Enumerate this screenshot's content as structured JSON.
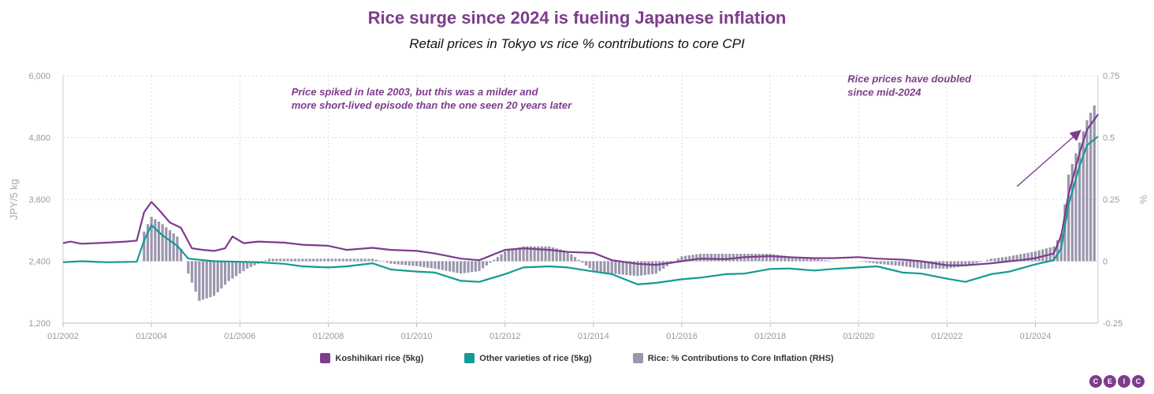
{
  "chart_data": {
    "type": "line",
    "title": "Rice surge since 2024 is fueling Japanese inflation",
    "subtitle": "Retail prices in Tokyo vs rice % contributions to core CPI",
    "ylabel": "JPY/5 kg",
    "y2label": "%",
    "ylim": [
      1200,
      6000
    ],
    "y2lim": [
      -0.25,
      0.75
    ],
    "yticks": [
      "1,200",
      "2,400",
      "3,600",
      "4,800",
      "6,000"
    ],
    "y2ticks": [
      "-0.25",
      "0",
      "0.25",
      "0.5",
      "0.75"
    ],
    "xticks": [
      "01/2002",
      "01/2004",
      "01/2006",
      "01/2008",
      "01/2010",
      "01/2012",
      "01/2014",
      "01/2016",
      "01/2018",
      "01/2020",
      "01/2022",
      "01/2024"
    ],
    "xlim": [
      "2002-01",
      "2025-06"
    ],
    "grid": true,
    "legend_position": "bottom",
    "series": [
      {
        "name": "Koshihikari rice (5kg)",
        "color": "#7d3c8c",
        "axis": "left",
        "points": [
          [
            "2002-01",
            2750
          ],
          [
            "2002-03",
            2780
          ],
          [
            "2002-06",
            2740
          ],
          [
            "2003-01",
            2760
          ],
          [
            "2003-06",
            2780
          ],
          [
            "2003-09",
            2800
          ],
          [
            "2003-11",
            3350
          ],
          [
            "2004-01",
            3550
          ],
          [
            "2004-03",
            3400
          ],
          [
            "2004-06",
            3150
          ],
          [
            "2004-09",
            3050
          ],
          [
            "2004-12",
            2650
          ],
          [
            "2005-03",
            2620
          ],
          [
            "2005-06",
            2600
          ],
          [
            "2005-09",
            2650
          ],
          [
            "2005-11",
            2880
          ],
          [
            "2006-02",
            2750
          ],
          [
            "2006-06",
            2780
          ],
          [
            "2007-01",
            2760
          ],
          [
            "2007-06",
            2720
          ],
          [
            "2008-01",
            2700
          ],
          [
            "2008-06",
            2620
          ],
          [
            "2009-01",
            2660
          ],
          [
            "2009-06",
            2620
          ],
          [
            "2010-01",
            2600
          ],
          [
            "2010-06",
            2550
          ],
          [
            "2011-01",
            2450
          ],
          [
            "2011-06",
            2420
          ],
          [
            "2012-01",
            2620
          ],
          [
            "2012-06",
            2650
          ],
          [
            "2013-01",
            2620
          ],
          [
            "2013-06",
            2580
          ],
          [
            "2014-01",
            2560
          ],
          [
            "2014-06",
            2420
          ],
          [
            "2015-01",
            2350
          ],
          [
            "2015-06",
            2330
          ],
          [
            "2016-01",
            2400
          ],
          [
            "2016-06",
            2450
          ],
          [
            "2017-01",
            2440
          ],
          [
            "2017-06",
            2480
          ],
          [
            "2018-01",
            2500
          ],
          [
            "2018-06",
            2480
          ],
          [
            "2019-01",
            2460
          ],
          [
            "2019-06",
            2460
          ],
          [
            "2020-01",
            2480
          ],
          [
            "2020-06",
            2450
          ],
          [
            "2021-01",
            2430
          ],
          [
            "2021-06",
            2400
          ],
          [
            "2022-01",
            2320
          ],
          [
            "2022-06",
            2320
          ],
          [
            "2023-01",
            2360
          ],
          [
            "2023-06",
            2400
          ],
          [
            "2023-09",
            2420
          ],
          [
            "2024-01",
            2460
          ],
          [
            "2024-06",
            2550
          ],
          [
            "2024-08",
            2900
          ],
          [
            "2024-10",
            3700
          ],
          [
            "2025-01",
            4500
          ],
          [
            "2025-03",
            4950
          ],
          [
            "2025-06",
            5250
          ]
        ]
      },
      {
        "name": "Other varieties of rice (5kg)",
        "color": "#149a94",
        "axis": "left",
        "points": [
          [
            "2002-01",
            2380
          ],
          [
            "2002-06",
            2400
          ],
          [
            "2003-01",
            2380
          ],
          [
            "2003-09",
            2390
          ],
          [
            "2003-11",
            2800
          ],
          [
            "2004-01",
            3100
          ],
          [
            "2004-04",
            2900
          ],
          [
            "2004-08",
            2700
          ],
          [
            "2004-11",
            2450
          ],
          [
            "2005-06",
            2400
          ],
          [
            "2006-01",
            2390
          ],
          [
            "2006-06",
            2380
          ],
          [
            "2007-01",
            2350
          ],
          [
            "2007-06",
            2300
          ],
          [
            "2008-01",
            2280
          ],
          [
            "2008-06",
            2300
          ],
          [
            "2009-01",
            2360
          ],
          [
            "2009-06",
            2240
          ],
          [
            "2010-01",
            2200
          ],
          [
            "2010-06",
            2180
          ],
          [
            "2011-01",
            2020
          ],
          [
            "2011-06",
            2000
          ],
          [
            "2012-01",
            2150
          ],
          [
            "2012-06",
            2280
          ],
          [
            "2013-01",
            2300
          ],
          [
            "2013-06",
            2280
          ],
          [
            "2014-01",
            2200
          ],
          [
            "2014-06",
            2150
          ],
          [
            "2015-01",
            1950
          ],
          [
            "2015-06",
            1980
          ],
          [
            "2016-01",
            2050
          ],
          [
            "2016-06",
            2080
          ],
          [
            "2017-01",
            2150
          ],
          [
            "2017-06",
            2160
          ],
          [
            "2018-01",
            2250
          ],
          [
            "2018-06",
            2260
          ],
          [
            "2019-01",
            2220
          ],
          [
            "2019-06",
            2250
          ],
          [
            "2020-01",
            2280
          ],
          [
            "2020-06",
            2300
          ],
          [
            "2021-01",
            2180
          ],
          [
            "2021-06",
            2160
          ],
          [
            "2022-01",
            2060
          ],
          [
            "2022-06",
            2000
          ],
          [
            "2023-01",
            2150
          ],
          [
            "2023-06",
            2200
          ],
          [
            "2024-01",
            2340
          ],
          [
            "2024-06",
            2420
          ],
          [
            "2024-08",
            2650
          ],
          [
            "2024-10",
            3500
          ],
          [
            "2025-01",
            4250
          ],
          [
            "2025-03",
            4650
          ],
          [
            "2025-06",
            4820
          ]
        ]
      },
      {
        "name": "Rice: % Contributions to Core Inflation (RHS)",
        "color": "#9b96ad",
        "axis": "right",
        "kind": "bar",
        "points": [
          [
            "2003-11",
            0.12
          ],
          [
            "2004-01",
            0.18
          ],
          [
            "2004-04",
            0.15
          ],
          [
            "2004-08",
            0.1
          ],
          [
            "2004-11",
            -0.05
          ],
          [
            "2005-02",
            -0.16
          ],
          [
            "2005-06",
            -0.14
          ],
          [
            "2005-10",
            -0.08
          ],
          [
            "2006-03",
            -0.03
          ],
          [
            "2006-09",
            0.01
          ],
          [
            "2007-06",
            0.01
          ],
          [
            "2008-06",
            0.01
          ],
          [
            "2009-01",
            0.01
          ],
          [
            "2009-06",
            -0.01
          ],
          [
            "2010-01",
            -0.02
          ],
          [
            "2010-06",
            -0.03
          ],
          [
            "2011-01",
            -0.05
          ],
          [
            "2011-06",
            -0.04
          ],
          [
            "2012-01",
            0.04
          ],
          [
            "2012-06",
            0.06
          ],
          [
            "2013-01",
            0.06
          ],
          [
            "2013-06",
            0.04
          ],
          [
            "2014-01",
            -0.04
          ],
          [
            "2014-06",
            -0.05
          ],
          [
            "2015-01",
            -0.06
          ],
          [
            "2015-06",
            -0.05
          ],
          [
            "2016-01",
            0.02
          ],
          [
            "2016-06",
            0.03
          ],
          [
            "2017-01",
            0.03
          ],
          [
            "2017-06",
            0.03
          ],
          [
            "2018-01",
            0.03
          ],
          [
            "2018-06",
            0.02
          ],
          [
            "2019-01",
            0.01
          ],
          [
            "2019-06",
            0.0
          ],
          [
            "2020-01",
            0.0
          ],
          [
            "2020-06",
            -0.01
          ],
          [
            "2021-01",
            -0.02
          ],
          [
            "2021-06",
            -0.03
          ],
          [
            "2022-01",
            -0.03
          ],
          [
            "2022-06",
            -0.02
          ],
          [
            "2023-01",
            0.01
          ],
          [
            "2023-06",
            0.02
          ],
          [
            "2024-01",
            0.04
          ],
          [
            "2024-06",
            0.06
          ],
          [
            "2024-08",
            0.11
          ],
          [
            "2024-10",
            0.35
          ],
          [
            "2025-01",
            0.48
          ],
          [
            "2025-03",
            0.57
          ],
          [
            "2025-05",
            0.63
          ]
        ]
      }
    ],
    "annotations": [
      {
        "lines": [
          "Price spiked in late 2003, but this was a milder and",
          "more short-lived episode than the one seen 20 years later"
        ],
        "color": "#7d3c8c",
        "x": "2007-03",
        "y": 5620
      },
      {
        "lines": [
          "Rice prices have doubled",
          "since mid-2024"
        ],
        "color": "#7d3c8c",
        "x": "2019-10",
        "y": 5870
      },
      {
        "arrow_from": [
          "2023-08",
          3850
        ],
        "arrow_to": [
          "2025-01",
          4920
        ],
        "color": "#7d3c8c"
      }
    ]
  },
  "logo": [
    "C",
    "E",
    "I",
    "C"
  ]
}
